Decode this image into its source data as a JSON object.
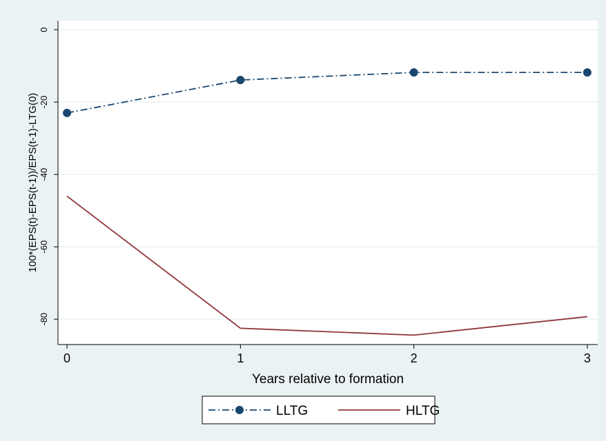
{
  "chart_data": {
    "type": "line",
    "xlabel": "Years relative to formation",
    "ylabel": "100*(EPS(t)-EPS(t-1))/EPS(t-1)-LTG(0)",
    "x": [
      0,
      1,
      2,
      3
    ],
    "series": [
      {
        "name": "LLTG",
        "color": "#1a476f",
        "values": [
          -23.0,
          -13.9,
          -11.8,
          -11.8
        ],
        "marker": true,
        "dash": true
      },
      {
        "name": "HLTG",
        "color": "#90353b",
        "values": [
          -46.0,
          -82.5,
          -84.4,
          -79.3
        ],
        "marker": false,
        "dash": false
      }
    ],
    "xlim": [
      -0.052,
      3.06
    ],
    "xticks": [
      0,
      1,
      2,
      3
    ],
    "ylim": [
      -87,
      2.5
    ],
    "yticks": [
      0,
      -20,
      -40,
      -60,
      -80
    ],
    "grid": true
  }
}
